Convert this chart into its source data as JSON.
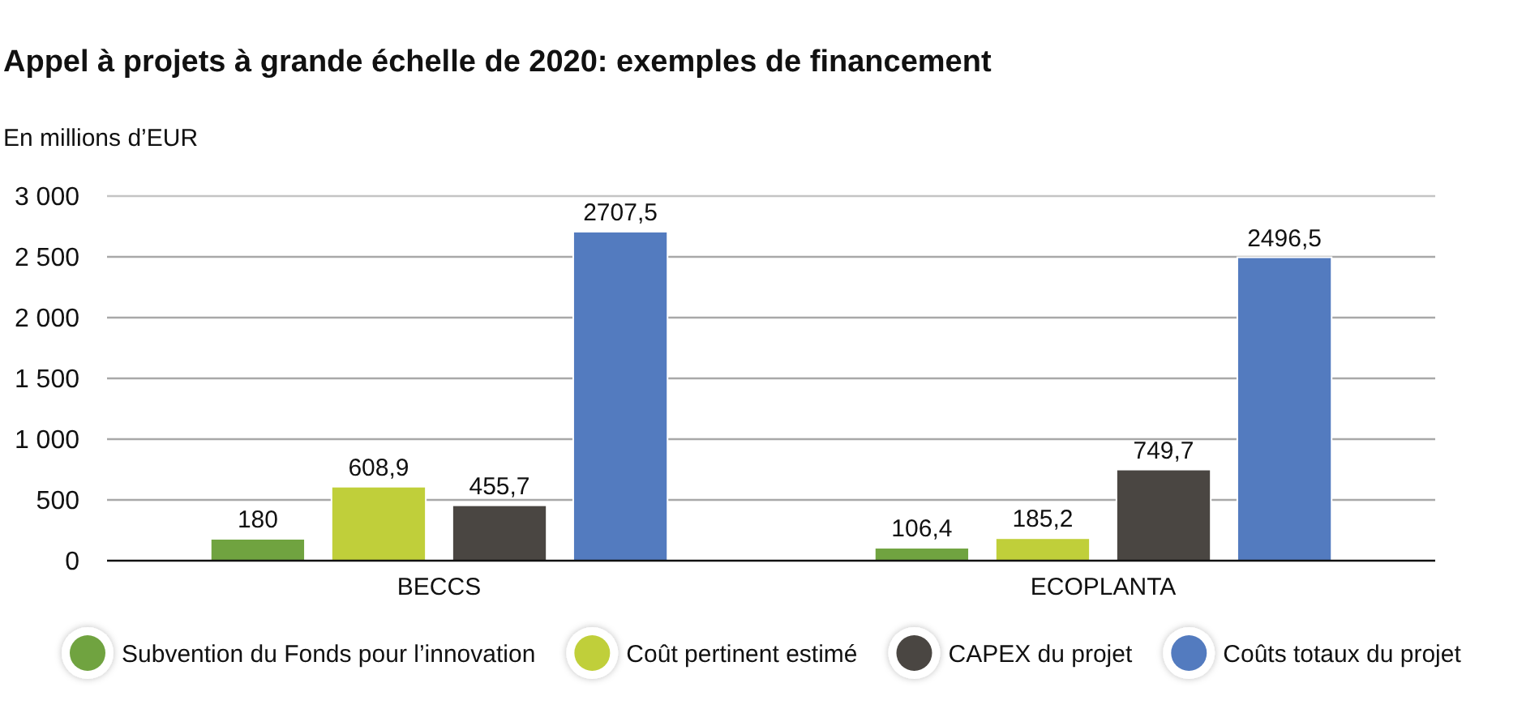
{
  "chart_data": {
    "type": "bar",
    "title": "Appel à projets à grande échelle de 2020: exemples de financement",
    "ylabel": "En millions d’EUR",
    "categories": [
      "BECCS",
      "ECOPLANTA"
    ],
    "series": [
      {
        "name": "Subvention du Fonds pour l’innovation",
        "color": "#70a340",
        "values": [
          180,
          106.4
        ],
        "value_labels": [
          "180",
          "106,4"
        ]
      },
      {
        "name": "Coût pertinent estimé",
        "color": "#c0cf3a",
        "values": [
          608.9,
          185.2
        ],
        "value_labels": [
          "608,9",
          "185,2"
        ]
      },
      {
        "name": "CAPEX du projet",
        "color": "#4a4642",
        "values": [
          455.7,
          749.7
        ],
        "value_labels": [
          "455,7",
          "749,7"
        ]
      },
      {
        "name": "Coûts totaux du projet",
        "color": "#537bbf",
        "values": [
          2707.5,
          2496.5
        ],
        "value_labels": [
          "2707,5",
          "2496,5"
        ]
      }
    ],
    "ylim": [
      0,
      3000
    ],
    "yticks": [
      0,
      500,
      {
        "value": 1000,
        "label": "1 000"
      },
      {
        "value": 1500,
        "label": "1 500"
      },
      {
        "value": 2000,
        "label": "2 000"
      },
      {
        "value": 2500,
        "label": "2 500"
      },
      {
        "value": 3000,
        "label": "3 000"
      }
    ],
    "grid": "y",
    "legend": "bottom"
  }
}
